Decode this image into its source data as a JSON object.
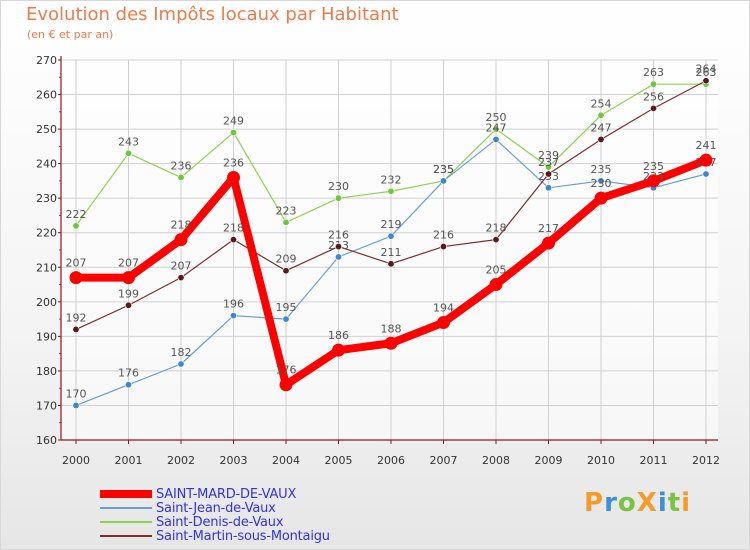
{
  "header": {
    "title": "Evolution des Impôts locaux par Habitant",
    "subtitle": "(en € et par an)"
  },
  "logo": {
    "text": "ProXiti",
    "letters": [
      "P",
      "r",
      "o",
      "X",
      "i",
      "t",
      "i"
    ],
    "colors": [
      "#f39c2b",
      "#3d8fd6",
      "#7cc242",
      "#f39c2b",
      "#3d8fd6",
      "#7cc242",
      "#f39c2b"
    ]
  },
  "colors": {
    "title": "#f07a4a",
    "axis": "#8b1a1a",
    "grid": "#d0d0d0",
    "legend_text": "#3333dd"
  },
  "chart_data": {
    "type": "line",
    "title": "Evolution des Impôts locaux par Habitant",
    "subtitle": "(en € et par an)",
    "xlabel": "",
    "ylabel": "",
    "x": [
      "2000",
      "2001",
      "2002",
      "2003",
      "2004",
      "2005",
      "2006",
      "2007",
      "2008",
      "2009",
      "2010",
      "2011",
      "2012"
    ],
    "ylim": [
      160,
      270
    ],
    "yticks": [
      160,
      170,
      180,
      190,
      200,
      210,
      220,
      230,
      240,
      250,
      260,
      270
    ],
    "grid": true,
    "legend_position": "bottom-left",
    "series": [
      {
        "name": "Saint-Denis-de-Vaux",
        "color": "#8fd14f",
        "dot": "#6ec63a",
        "width": 1.2,
        "dot_r": 3.2,
        "values": [
          222,
          243,
          236,
          249,
          223,
          230,
          232,
          235,
          250,
          239,
          254,
          263,
          263
        ]
      },
      {
        "name": "Saint-Jean-de-Vaux",
        "color": "#6a9fd4",
        "dot": "#3f86cf",
        "width": 1.2,
        "dot_r": 3.2,
        "values": [
          170,
          176,
          182,
          196,
          195,
          213,
          219,
          235,
          247,
          233,
          235,
          233,
          237
        ]
      },
      {
        "name": "Saint-Martin-sous-Montaigu",
        "color": "#7a2e2e",
        "dot": "#5a1a1a",
        "width": 1.2,
        "dot_r": 3.2,
        "values": [
          192,
          199,
          207,
          218,
          209,
          216,
          211,
          216,
          218,
          237,
          247,
          256,
          264
        ]
      },
      {
        "name": "SAINT-MARD-DE-VAUX",
        "color": "#ff0000",
        "dot": "#ff0000",
        "width": 8,
        "dot_r": 6.5,
        "values": [
          207,
          207,
          218,
          236,
          176,
          186,
          188,
          194,
          205,
          217,
          230,
          235,
          241
        ]
      }
    ],
    "legend_order": [
      "SAINT-MARD-DE-VAUX",
      "Saint-Jean-de-Vaux",
      "Saint-Denis-de-Vaux",
      "Saint-Martin-sous-Montaigu"
    ]
  }
}
